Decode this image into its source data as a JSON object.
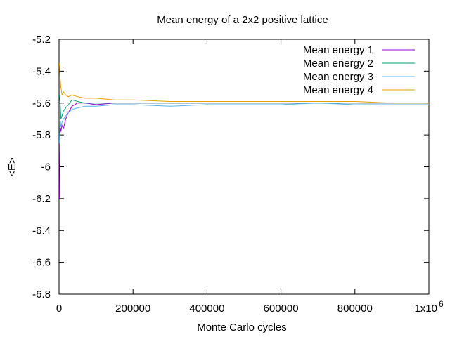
{
  "chart_data": {
    "type": "line",
    "title": "Mean energy of a 2x2 positive lattice",
    "xlabel": "Monte Carlo cycles",
    "ylabel": "<E>",
    "xlim": [
      0,
      1000000
    ],
    "ylim": [
      -6.8,
      -5.2
    ],
    "x_ticks": [
      0,
      200000,
      400000,
      600000,
      800000,
      1000000
    ],
    "x_tick_labels": [
      "0",
      "200000",
      "400000",
      "600000",
      "800000",
      "1x10"
    ],
    "x_tick_exponent": "6",
    "y_ticks": [
      -5.2,
      -5.4,
      -5.6,
      -5.8,
      -6.0,
      -6.2,
      -6.4,
      -6.6,
      -6.8
    ],
    "y_tick_labels": [
      "-5.2",
      "-5.4",
      "-5.6",
      "-5.8",
      "-6",
      "-6.2",
      "-6.4",
      "-6.6",
      "-6.8"
    ],
    "grid": false,
    "legend_position": "top-right",
    "series": [
      {
        "name": "Mean energy 1",
        "color": "#9400d3",
        "x": [
          1000,
          3000,
          5000,
          8000,
          12000,
          18000,
          25000,
          35000,
          50000,
          70000,
          100000,
          150000,
          200000,
          300000,
          400000,
          500000,
          600000,
          700000,
          800000,
          900000,
          1000000
        ],
        "y": [
          -6.2,
          -5.75,
          -5.78,
          -5.74,
          -5.76,
          -5.7,
          -5.66,
          -5.62,
          -5.6,
          -5.6,
          -5.61,
          -5.6,
          -5.6,
          -5.6,
          -5.6,
          -5.6,
          -5.6,
          -5.6,
          -5.6,
          -5.6,
          -5.6
        ]
      },
      {
        "name": "Mean energy 2",
        "color": "#009e73",
        "x": [
          1000,
          3000,
          5000,
          8000,
          12000,
          18000,
          25000,
          35000,
          50000,
          70000,
          100000,
          150000,
          200000,
          300000,
          400000,
          500000,
          600000,
          700000,
          800000,
          900000,
          1000000
        ],
        "y": [
          -5.55,
          -5.6,
          -5.7,
          -5.68,
          -5.65,
          -5.63,
          -5.61,
          -5.58,
          -5.59,
          -5.6,
          -5.6,
          -5.6,
          -5.6,
          -5.6,
          -5.6,
          -5.6,
          -5.6,
          -5.6,
          -5.6,
          -5.6,
          -5.6
        ]
      },
      {
        "name": "Mean energy 3",
        "color": "#56b4e9",
        "x": [
          1000,
          3000,
          5000,
          8000,
          12000,
          18000,
          25000,
          35000,
          50000,
          70000,
          100000,
          150000,
          200000,
          300000,
          400000,
          500000,
          600000,
          700000,
          800000,
          900000,
          1000000
        ],
        "y": [
          -5.85,
          -5.7,
          -5.75,
          -5.72,
          -5.7,
          -5.68,
          -5.66,
          -5.64,
          -5.63,
          -5.62,
          -5.62,
          -5.61,
          -5.61,
          -5.62,
          -5.61,
          -5.61,
          -5.61,
          -5.6,
          -5.61,
          -5.61,
          -5.61
        ]
      },
      {
        "name": "Mean energy 4",
        "color": "#e69f00",
        "x": [
          1000,
          3000,
          5000,
          8000,
          12000,
          18000,
          25000,
          35000,
          50000,
          70000,
          100000,
          150000,
          200000,
          300000,
          400000,
          500000,
          600000,
          700000,
          800000,
          900000,
          1000000
        ],
        "y": [
          -5.35,
          -5.45,
          -5.5,
          -5.55,
          -5.53,
          -5.55,
          -5.56,
          -5.55,
          -5.56,
          -5.57,
          -5.57,
          -5.58,
          -5.58,
          -5.59,
          -5.59,
          -5.59,
          -5.59,
          -5.59,
          -5.59,
          -5.6,
          -5.6
        ]
      }
    ]
  }
}
